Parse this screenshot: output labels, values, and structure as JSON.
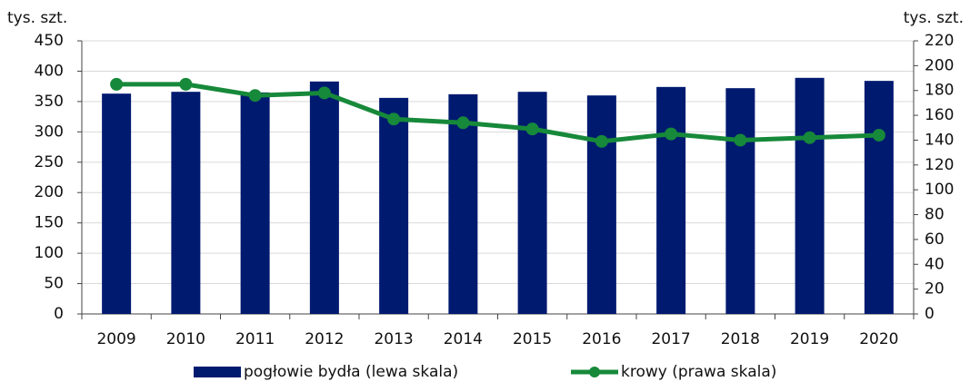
{
  "chart_data": {
    "type": "bar",
    "categories": [
      "2009",
      "2010",
      "2011",
      "2012",
      "2013",
      "2014",
      "2015",
      "2016",
      "2017",
      "2018",
      "2019",
      "2020"
    ],
    "series": [
      {
        "name": "pogłowie bydła (lewa skala)",
        "type": "bar",
        "color": "#001a70",
        "values": [
          363,
          366,
          365,
          383,
          356,
          362,
          366,
          360,
          374,
          372,
          389,
          384
        ]
      },
      {
        "name": "krowy  (prawa skala)",
        "type": "line",
        "axis": "y2",
        "color": "#17893a",
        "values": [
          185,
          185,
          176,
          178,
          157,
          154,
          149,
          139,
          145,
          140,
          142,
          144
        ]
      }
    ],
    "ylabel": "tys. szt.",
    "y2label": "tys. szt.",
    "ylim": [
      0,
      450
    ],
    "yticks": [
      0,
      50,
      100,
      150,
      200,
      250,
      300,
      350,
      400,
      450
    ],
    "y2lim": [
      0,
      220
    ],
    "y2ticks": [
      0,
      20,
      40,
      60,
      80,
      100,
      120,
      140,
      160,
      180,
      200,
      220
    ],
    "grid": true,
    "legend": "bottom"
  }
}
